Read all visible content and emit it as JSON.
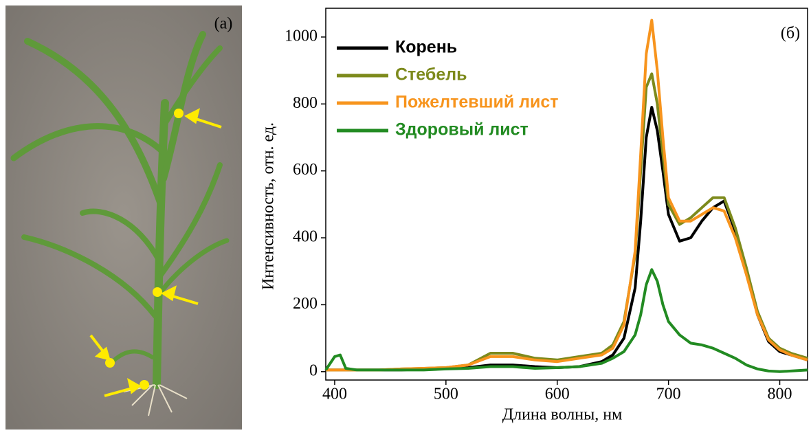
{
  "photo": {
    "label": "(a)"
  },
  "chart_data": {
    "type": "line",
    "annotation": "(б)",
    "xlabel": "Длина волны, нм",
    "ylabel": "Интенсивность, отн. ед.",
    "x": [
      392,
      400,
      405,
      410,
      420,
      440,
      460,
      480,
      500,
      520,
      540,
      560,
      580,
      600,
      620,
      640,
      650,
      660,
      670,
      675,
      680,
      685,
      690,
      695,
      700,
      710,
      720,
      730,
      740,
      750,
      760,
      770,
      780,
      790,
      800,
      810,
      825
    ],
    "series": [
      {
        "name": "Корень",
        "color": "#000000",
        "values": [
          5,
          5,
          5,
          5,
          5,
          5,
          5,
          8,
          10,
          12,
          20,
          20,
          15,
          12,
          15,
          30,
          50,
          100,
          250,
          450,
          700,
          790,
          720,
          600,
          470,
          390,
          400,
          450,
          490,
          510,
          420,
          300,
          170,
          90,
          60,
          50,
          35
        ]
      },
      {
        "name": "Стебель",
        "color": "#7d8a1c",
        "values": [
          5,
          5,
          5,
          5,
          5,
          5,
          8,
          10,
          12,
          20,
          55,
          55,
          40,
          35,
          45,
          55,
          80,
          150,
          350,
          600,
          850,
          890,
          800,
          650,
          500,
          440,
          460,
          490,
          520,
          520,
          430,
          310,
          180,
          100,
          70,
          55,
          40
        ]
      },
      {
        "name": "Пожелтевший лист",
        "color": "#f7941d",
        "values": [
          5,
          5,
          5,
          5,
          5,
          5,
          8,
          10,
          12,
          20,
          45,
          45,
          35,
          30,
          40,
          50,
          70,
          140,
          360,
          650,
          950,
          1050,
          900,
          700,
          520,
          450,
          450,
          470,
          490,
          480,
          400,
          290,
          170,
          95,
          65,
          50,
          35
        ]
      },
      {
        "name": "Здоровый лист",
        "color": "#228b22",
        "values": [
          5,
          45,
          50,
          10,
          5,
          5,
          5,
          5,
          8,
          10,
          15,
          15,
          10,
          12,
          15,
          25,
          40,
          60,
          110,
          170,
          260,
          305,
          270,
          200,
          150,
          110,
          85,
          80,
          70,
          55,
          40,
          20,
          8,
          2,
          0,
          2,
          5
        ]
      }
    ],
    "xlim": [
      392,
      825
    ],
    "ylim": [
      -25,
      1086
    ],
    "xticks": [
      400,
      500,
      600,
      700,
      800
    ],
    "yticks": [
      0,
      200,
      400,
      600,
      800,
      1000
    ],
    "grid": false,
    "legend": "top-left"
  }
}
